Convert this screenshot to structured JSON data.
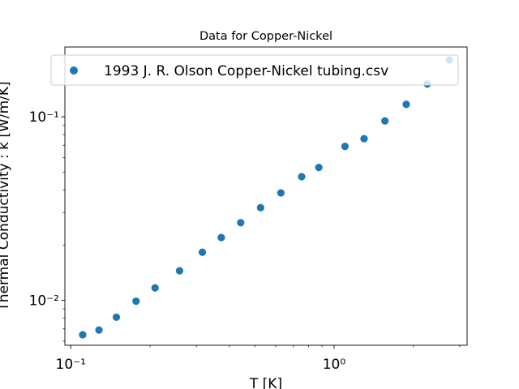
{
  "chart_data": {
    "type": "scatter",
    "title": "Data for Copper-Nickel",
    "xlabel": "T [K]",
    "ylabel": "Thermal Conductivity : k [W/m/K]",
    "xscale": "log",
    "yscale": "log",
    "xlim": [
      0.095,
      3.2
    ],
    "ylim": [
      0.0057,
      0.24
    ],
    "x_major_ticks": [
      {
        "value": 0.1,
        "label": "10⁻¹"
      },
      {
        "value": 1,
        "label": "10⁰"
      }
    ],
    "y_major_ticks": [
      {
        "value": 0.01,
        "label": "10⁻²"
      },
      {
        "value": 0.1,
        "label": "10⁻¹"
      }
    ],
    "legend_position": "top",
    "grid": false,
    "series": [
      {
        "name": "1993 J. R. Olson Copper-Nickel tubing.csv",
        "color": "#1f77b4",
        "x": [
          0.111,
          0.128,
          0.149,
          0.177,
          0.209,
          0.259,
          0.316,
          0.373,
          0.442,
          0.526,
          0.628,
          0.753,
          0.875,
          1.1,
          1.3,
          1.56,
          1.88,
          2.26,
          2.74
        ],
        "y": [
          0.0065,
          0.0069,
          0.0081,
          0.0099,
          0.0117,
          0.0145,
          0.0183,
          0.022,
          0.0265,
          0.032,
          0.0385,
          0.0472,
          0.053,
          0.069,
          0.076,
          0.095,
          0.117,
          0.151,
          0.204
        ]
      }
    ]
  }
}
